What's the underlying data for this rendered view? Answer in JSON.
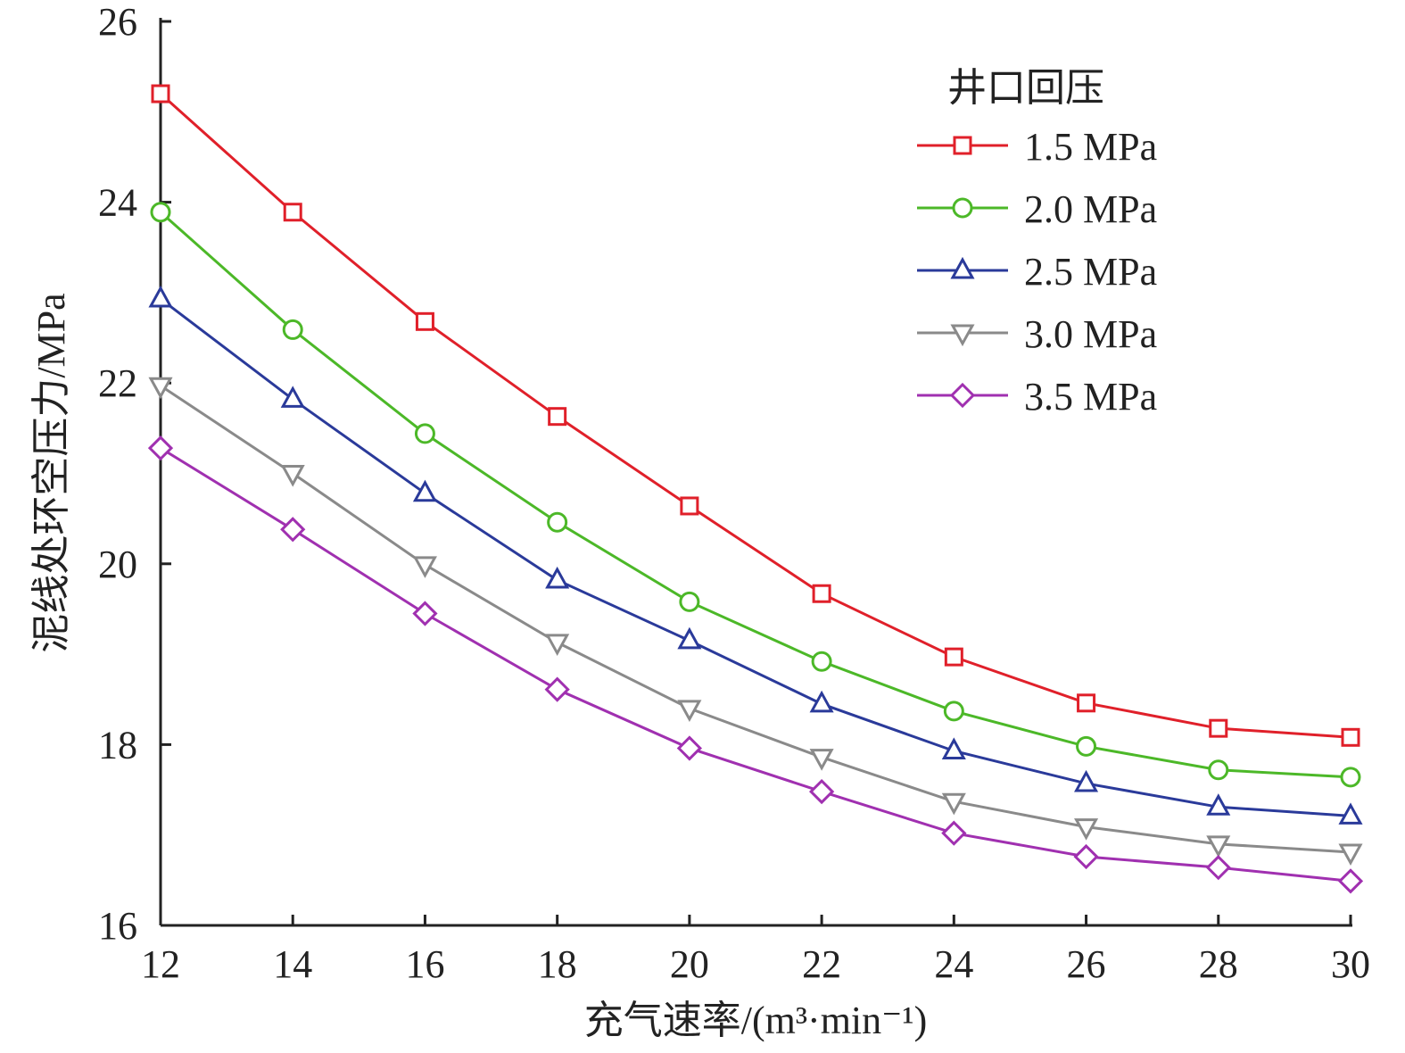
{
  "chart_data": {
    "type": "line",
    "title": "",
    "xlabel": "充气速率/(m³·min⁻¹)",
    "ylabel": "泥线处环空压力/MPa",
    "xlim": [
      12,
      30
    ],
    "ylim": [
      16,
      26
    ],
    "xticks": [
      "12",
      "14",
      "16",
      "18",
      "20",
      "22",
      "24",
      "26",
      "28",
      "30"
    ],
    "yticks": [
      "16",
      "18",
      "20",
      "22",
      "24",
      "26"
    ],
    "grid": false,
    "legend": {
      "title": "井口回压",
      "placement": "top-right"
    },
    "x": [
      12,
      14,
      16,
      18,
      20,
      22,
      24,
      26,
      28,
      30
    ],
    "series": [
      {
        "name": "1.5 MPa",
        "color": "#e0202a",
        "marker": "square",
        "values": [
          25.2,
          23.89,
          22.68,
          21.63,
          20.64,
          19.67,
          18.97,
          18.46,
          18.18,
          18.08
        ]
      },
      {
        "name": "2.0 MPa",
        "color": "#4cb828",
        "marker": "circle",
        "values": [
          23.89,
          22.59,
          21.44,
          20.46,
          19.58,
          18.92,
          18.37,
          17.98,
          17.72,
          17.64
        ]
      },
      {
        "name": "2.5 MPa",
        "color": "#2a3a9a",
        "marker": "triangle-up",
        "values": [
          22.93,
          21.82,
          20.78,
          19.82,
          19.15,
          18.45,
          17.93,
          17.57,
          17.31,
          17.21
        ]
      },
      {
        "name": "3.0 MPa",
        "color": "#8a8a8a",
        "marker": "triangle-down",
        "values": [
          21.97,
          21.0,
          19.99,
          19.13,
          18.4,
          17.86,
          17.37,
          17.09,
          16.9,
          16.81
        ]
      },
      {
        "name": "3.5 MPa",
        "color": "#a030b0",
        "marker": "diamond",
        "values": [
          21.28,
          20.38,
          19.45,
          18.61,
          17.96,
          17.48,
          17.02,
          16.76,
          16.64,
          16.49
        ]
      }
    ]
  }
}
